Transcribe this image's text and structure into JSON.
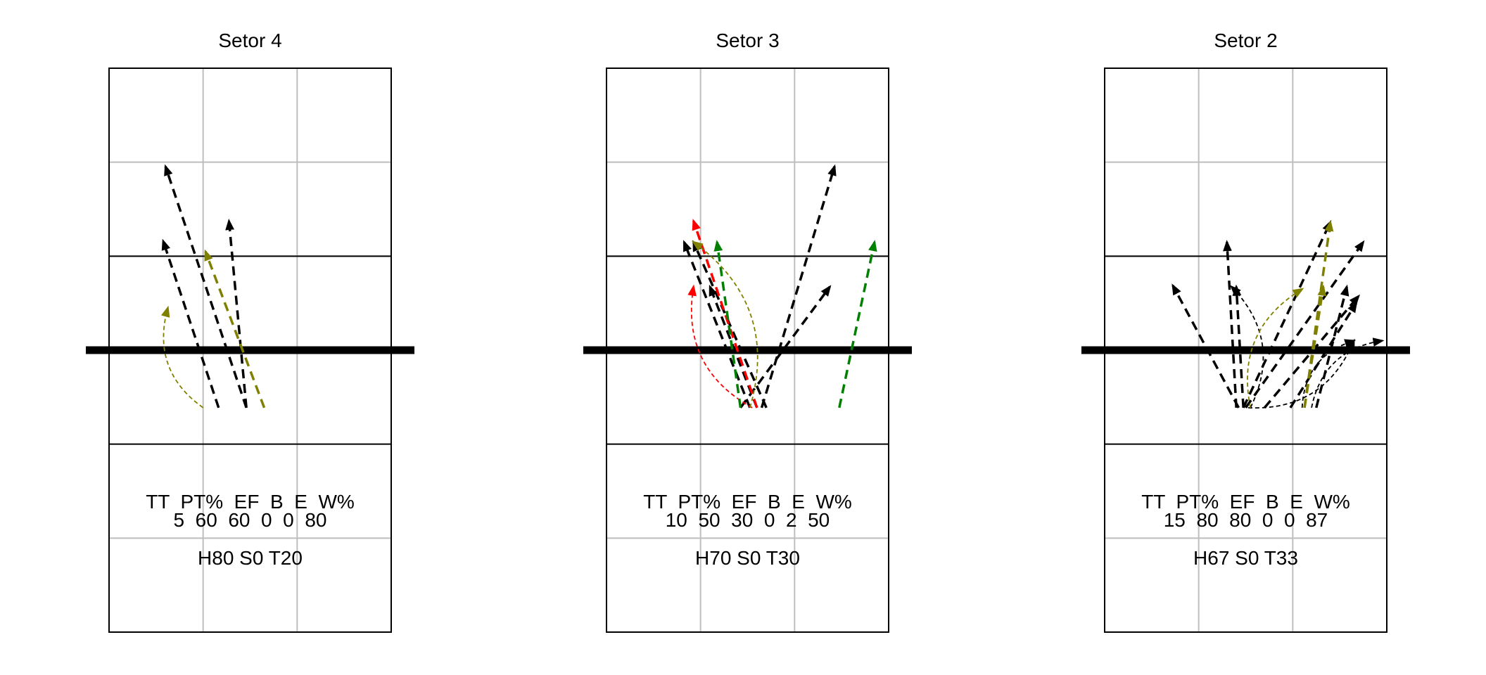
{
  "colors": {
    "black": "#000000",
    "olive": "#808000",
    "red": "#ff0000",
    "green": "#008000",
    "grid": "#bebebe"
  },
  "panels": [
    {
      "title": "Setor 4",
      "stats_header": "TT  PT%  EF  B  E  W%",
      "stats_values": "5  60  60  0  0  80",
      "summary": "H80 S0 T20",
      "arrows": [
        {
          "from": [
            2.92,
            9.55
          ],
          "to": [
            1.2,
            19.82
          ],
          "color": "black",
          "width": "thick"
        },
        {
          "from": [
            2.92,
            9.55
          ],
          "to": [
            2.55,
            17.5
          ],
          "color": "black",
          "width": "thick"
        },
        {
          "from": [
            2.33,
            9.55
          ],
          "to": [
            1.15,
            16.65
          ],
          "color": "black",
          "width": "thick"
        },
        {
          "from": [
            3.3,
            9.55
          ],
          "to": [
            2.05,
            16.2
          ],
          "color": "olive",
          "width": "thick"
        },
        {
          "from": [
            2.0,
            9.55
          ],
          "to": [
            1.25,
            13.8
          ],
          "color": "olive",
          "width": "thin",
          "curve": "left"
        }
      ]
    },
    {
      "title": "Setor 3",
      "stats_header": "TT  PT%  EF  B  E  W%",
      "stats_values": "10  50  30  0  2  50",
      "summary": "H70 S0 T30",
      "arrows": [
        {
          "from": [
            3.3,
            9.55
          ],
          "to": [
            4.85,
            19.82
          ],
          "color": "black",
          "width": "thick"
        },
        {
          "from": [
            2.85,
            9.55
          ],
          "to": [
            4.75,
            14.7
          ],
          "color": "black",
          "width": "thick"
        },
        {
          "from": [
            3.4,
            9.55
          ],
          "to": [
            1.85,
            16.6
          ],
          "color": "black",
          "width": "thick"
        },
        {
          "from": [
            3.05,
            9.55
          ],
          "to": [
            1.65,
            16.6
          ],
          "color": "black",
          "width": "thick"
        },
        {
          "from": [
            3.2,
            9.55
          ],
          "to": [
            2.2,
            14.7
          ],
          "color": "black",
          "width": "thick"
        },
        {
          "from": [
            3.2,
            9.55
          ],
          "to": [
            1.85,
            17.5
          ],
          "color": "red",
          "width": "thick"
        },
        {
          "from": [
            3.1,
            9.55
          ],
          "to": [
            1.85,
            14.7
          ],
          "color": "red",
          "width": "thin",
          "curve": "left"
        },
        {
          "from": [
            2.85,
            9.55
          ],
          "to": [
            2.35,
            16.6
          ],
          "color": "green",
          "width": "thick"
        },
        {
          "from": [
            4.95,
            9.55
          ],
          "to": [
            5.7,
            16.6
          ],
          "color": "green",
          "width": "thick"
        },
        {
          "from": [
            3.05,
            9.55
          ],
          "to": [
            1.85,
            16.6
          ],
          "color": "olive",
          "width": "thin",
          "curve": "right"
        }
      ]
    },
    {
      "title": "Setor 2",
      "stats_header": "TT  PT%  EF  B  E  W%",
      "stats_values": "15  80  80  0  0  87",
      "summary": "H67 S0 T33",
      "arrows": [
        {
          "from": [
            2.85,
            9.55
          ],
          "to": [
            1.45,
            14.75
          ],
          "color": "black",
          "width": "thick"
        },
        {
          "from": [
            2.8,
            9.55
          ],
          "to": [
            2.6,
            16.6
          ],
          "color": "black",
          "width": "thick"
        },
        {
          "from": [
            2.95,
            9.55
          ],
          "to": [
            4.8,
            17.45
          ],
          "color": "black",
          "width": "thick"
        },
        {
          "from": [
            3.0,
            9.55
          ],
          "to": [
            5.5,
            16.6
          ],
          "color": "black",
          "width": "thick"
        },
        {
          "from": [
            3.4,
            9.55
          ],
          "to": [
            5.4,
            14.3
          ],
          "color": "black",
          "width": "thick"
        },
        {
          "from": [
            3.95,
            9.55
          ],
          "to": [
            5.35,
            14.0
          ],
          "color": "black",
          "width": "thick"
        },
        {
          "from": [
            2.95,
            9.55
          ],
          "to": [
            2.8,
            14.7
          ],
          "color": "black",
          "width": "thick"
        },
        {
          "from": [
            4.5,
            9.55
          ],
          "to": [
            5.15,
            14.7
          ],
          "color": "black",
          "width": "thick"
        },
        {
          "from": [
            3.1,
            9.55
          ],
          "to": [
            2.7,
            14.7
          ],
          "color": "black",
          "width": "thin",
          "curve": "right"
        },
        {
          "from": [
            3.05,
            9.55
          ],
          "to": [
            5.3,
            12.4
          ],
          "color": "black",
          "width": "thin",
          "curve": "right"
        },
        {
          "from": [
            4.2,
            9.55
          ],
          "to": [
            5.3,
            12.4
          ],
          "color": "black",
          "width": "thin",
          "curve": "left"
        },
        {
          "from": [
            4.4,
            9.55
          ],
          "to": [
            5.9,
            12.4
          ],
          "color": "black",
          "width": "thin",
          "curve": "left"
        },
        {
          "from": [
            4.25,
            9.55
          ],
          "to": [
            4.8,
            17.45
          ],
          "color": "olive",
          "width": "thick"
        },
        {
          "from": [
            4.25,
            9.55
          ],
          "to": [
            4.65,
            14.7
          ],
          "color": "olive",
          "width": "thick"
        },
        {
          "from": [
            3.1,
            9.55
          ],
          "to": [
            4.2,
            14.6
          ],
          "color": "olive",
          "width": "thin",
          "curve": "left"
        }
      ]
    }
  ]
}
